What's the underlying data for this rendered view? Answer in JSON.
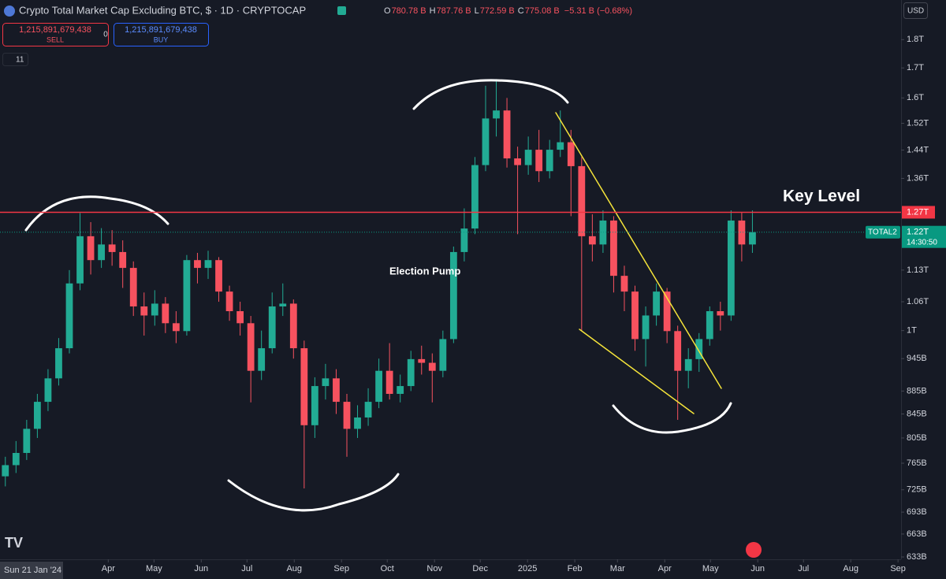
{
  "chart_data": {
    "type": "candlestick",
    "title": "Crypto Total Market Cap Excluding BTC, $ · 1D · CRYPTOCAP",
    "legend_values": [
      {
        "label": "O",
        "value": "780.78 B"
      },
      {
        "label": "H",
        "value": "787.76 B"
      },
      {
        "label": "L",
        "value": "772.59 B"
      },
      {
        "label": "C",
        "value": "775.08 B"
      }
    ],
    "change_text": "−5.31 B (−0.68%)",
    "sell_price": "1,215,891,679,438",
    "sell_label": "SELL",
    "spread": "0",
    "buy_price": "1,215,891,679,438",
    "buy_label": "BUY",
    "indicator_count": "11",
    "currency": "USD",
    "x_start_label": "Sun 21 Jan '24",
    "log_scale": true,
    "grid": false,
    "up_color": "#22ab94",
    "down_color": "#f7525f",
    "xlim": [
      0,
      591
    ],
    "ylim": [
      630,
      1950
    ],
    "xticks": [
      {
        "value": 71,
        "label": "Apr"
      },
      {
        "value": 101,
        "label": "May"
      },
      {
        "value": 132,
        "label": "Jun"
      },
      {
        "value": 162,
        "label": "Jul"
      },
      {
        "value": 193,
        "label": "Aug"
      },
      {
        "value": 224,
        "label": "Sep"
      },
      {
        "value": 254,
        "label": "Oct"
      },
      {
        "value": 285,
        "label": "Nov"
      },
      {
        "value": 315,
        "label": "Dec"
      },
      {
        "value": 346,
        "label": "2025"
      },
      {
        "value": 377,
        "label": "Feb"
      },
      {
        "value": 405,
        "label": "Mar"
      },
      {
        "value": 436,
        "label": "Apr"
      },
      {
        "value": 466,
        "label": "May"
      },
      {
        "value": 497,
        "label": "Jun"
      },
      {
        "value": 527,
        "label": "Jul"
      },
      {
        "value": 558,
        "label": "Aug"
      },
      {
        "value": 589,
        "label": "Sep"
      }
    ],
    "yticks": [
      {
        "value": 1800,
        "label": "1.8T"
      },
      {
        "value": 1700,
        "label": "1.7T"
      },
      {
        "value": 1600,
        "label": "1.6T"
      },
      {
        "value": 1520,
        "label": "1.52T"
      },
      {
        "value": 1440,
        "label": "1.44T"
      },
      {
        "value": 1360,
        "label": "1.36T"
      },
      {
        "value": 1130,
        "label": "1.13T"
      },
      {
        "value": 1060,
        "label": "1.06T"
      },
      {
        "value": 1000,
        "label": "1T"
      },
      {
        "value": 945,
        "label": "945B"
      },
      {
        "value": 885,
        "label": "885B"
      },
      {
        "value": 845,
        "label": "845B"
      },
      {
        "value": 805,
        "label": "805B"
      },
      {
        "value": 765,
        "label": "765B"
      },
      {
        "value": 725,
        "label": "725B"
      },
      {
        "value": 693,
        "label": "693B"
      },
      {
        "value": 663,
        "label": "663B"
      },
      {
        "value": 633,
        "label": "633B"
      }
    ],
    "key_level": {
      "value": 1270,
      "label": "1.27T",
      "color": "#f23645"
    },
    "key_level_text": "Key Level",
    "annotation": "Election Pump",
    "last_price": {
      "value": 1220,
      "label": "1.22T",
      "symbol": "TOTAL2",
      "countdown": "14:30:50",
      "color": "#089981"
    },
    "x": [
      3.5,
      10.5,
      17.5,
      24.5,
      31.5,
      38.5,
      45.5,
      52.5,
      59.5,
      66.5,
      73.5,
      80.5,
      87.5,
      94.5,
      101.5,
      108.5,
      115.5,
      122.5,
      129.5,
      136.5,
      143.5,
      150.5,
      157.5,
      164.5,
      171.5,
      178.5,
      185.5,
      192.5,
      199.5,
      206.5,
      213.5,
      220.5,
      227.5,
      234.5,
      241.5,
      248.5,
      255.5,
      262.5,
      269.5,
      276.5,
      283.5,
      290.5,
      297.5,
      304.5,
      311.5,
      318.5,
      325.5,
      332.5,
      339.5,
      346.5,
      353.5,
      360.5,
      367.5,
      374.5,
      381.5,
      388.5,
      395.5,
      402.5,
      409.5,
      416.5,
      423.5,
      430.5,
      437.5,
      444.5,
      451.5,
      458.5,
      465.5,
      472.5,
      479.5,
      486.5,
      493.5
    ],
    "open": [
      745,
      762,
      781,
      820,
      866,
      908,
      965,
      1100,
      1210,
      1153,
      1190,
      1172,
      1135,
      1050,
      1031,
      1056,
      1015,
      999,
      1153,
      1135,
      1153,
      1082,
      1040,
      1015,
      922,
      965,
      1050,
      1056,
      965,
      826,
      894,
      908,
      866,
      820,
      839,
      866,
      922,
      880,
      894,
      944,
      937,
      922,
      983,
      1172,
      1229,
      1397,
      1535,
      1560,
      1416,
      1397,
      1441,
      1380,
      1441,
      1463,
      1394,
      1210,
      1190,
      1249,
      1117,
      1082,
      983,
      1031,
      1082,
      999,
      922,
      944,
      983,
      1040,
      1031,
      1249,
      1190
    ],
    "high": [
      775,
      800,
      835,
      880,
      925,
      985,
      1130,
      1268,
      1245,
      1230,
      1225,
      1200,
      1150,
      1080,
      1085,
      1070,
      1040,
      1165,
      1170,
      1175,
      1160,
      1095,
      1060,
      1030,
      1000,
      1080,
      1100,
      1065,
      980,
      910,
      935,
      925,
      880,
      860,
      890,
      945,
      975,
      915,
      960,
      970,
      955,
      1000,
      1185,
      1280,
      1420,
      1640,
      1662,
      1600,
      1450,
      1480,
      1500,
      1470,
      1560,
      1500,
      1420,
      1265,
      1275,
      1260,
      1140,
      1095,
      1050,
      1100,
      1090,
      1010,
      965,
      995,
      1050,
      1060,
      1275,
      1270,
      1275
    ],
    "low": [
      730,
      750,
      770,
      805,
      850,
      895,
      955,
      1085,
      1120,
      1135,
      1140,
      1090,
      1030,
      990,
      1010,
      995,
      975,
      990,
      1100,
      1110,
      1060,
      1020,
      990,
      865,
      905,
      955,
      1030,
      945,
      727,
      805,
      870,
      845,
      775,
      805,
      825,
      855,
      870,
      865,
      885,
      915,
      865,
      910,
      975,
      1150,
      1215,
      1380,
      1480,
      1390,
      1215,
      1370,
      1350,
      1360,
      1420,
      1260,
      1000,
      1150,
      1170,
      1080,
      1040,
      960,
      930,
      1010,
      975,
      835,
      890,
      920,
      970,
      1000,
      1020,
      1150,
      1170
    ],
    "close": [
      762,
      781,
      820,
      866,
      908,
      965,
      1100,
      1210,
      1153,
      1190,
      1172,
      1135,
      1050,
      1031,
      1056,
      1015,
      999,
      1153,
      1135,
      1153,
      1082,
      1040,
      1015,
      922,
      965,
      1050,
      1056,
      965,
      826,
      894,
      908,
      866,
      820,
      839,
      866,
      922,
      880,
      894,
      944,
      937,
      922,
      983,
      1172,
      1229,
      1397,
      1535,
      1560,
      1416,
      1397,
      1441,
      1380,
      1441,
      1463,
      1394,
      1210,
      1190,
      1249,
      1117,
      1082,
      983,
      1031,
      1082,
      999,
      922,
      944,
      983,
      1040,
      1031,
      1249,
      1190,
      1220
    ]
  }
}
